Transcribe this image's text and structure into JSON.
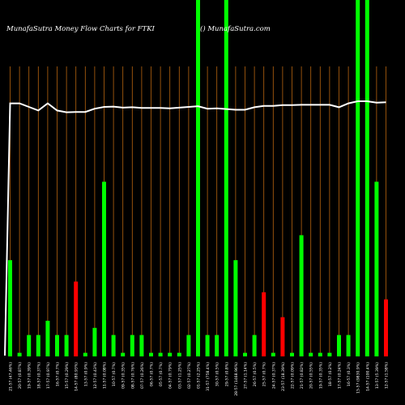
{
  "header": {
    "title": "MunafaSutra  Money Flow  Charts for FTKI",
    "credit": "() MunafaSutra.com"
  },
  "chart_data": {
    "type": "bar",
    "title": "MunafaSutra  Money Flow  Charts for FTKI",
    "background": "#000000",
    "colors": {
      "up": "#00ff00",
      "down": "#ff0000",
      "line": "#ffffff",
      "grid": "#b8650f"
    },
    "ylim": [
      0,
      100
    ],
    "grid": true,
    "categories": [
      "21-57 (47.46%)",
      "20-57 (0.87%)",
      "19-57 (0.39%)",
      "18-57 (0.37%)",
      "17-57 (0.97%)",
      "16-57 (0.7%)",
      "15-57 (0.29%)",
      "14-57 (80.93%)",
      "13-57 (0.9%)",
      "12-57 (0.43%)",
      "11-57 (0.08%)",
      "10-57 (0.7%)",
      "09-57 (0.35%)",
      "08-57 (0.76%)",
      "07-57 (0.26%)",
      "06-57 (0.7%)",
      "05-57 (0.7%)",
      "04-57 (0.79%)",
      "03-57 (1.25%)",
      "02-57 (0.27%)",
      "01-57 (2.25%)",
      "31-57 (758.4%)",
      "30-57 (0.5%)",
      "29-57 (0.8%)",
      "28-57 (1468.96%)",
      "27-57 (1.14%)",
      "26-57 (0.5%)",
      "25-57 (0.7%)",
      "24-57 (0.37%)",
      "23-57 (18.39%)",
      "22-57 (0.09%)",
      "21-57 (0.82%)",
      "20-57 (0.55%)",
      "19-57 (0.35%)",
      "18-57 (0.2%)",
      "17-57 (0.24%)",
      "16-57 (0.3%)",
      "15-57 (9830.9%)",
      "14-57 (100.4%)",
      "13-57 (5.39%)",
      "12-57 (1.58%)"
    ],
    "series": [
      {
        "values": [
          27,
          1,
          6,
          6,
          10,
          6,
          6,
          21,
          1,
          8,
          49,
          6,
          1,
          6,
          6,
          1,
          1,
          1,
          1,
          6,
          100,
          6,
          6,
          100,
          27,
          1,
          6,
          18,
          1,
          11,
          1,
          34,
          1,
          1,
          1,
          6,
          6,
          100,
          100,
          49,
          16
        ],
        "bar_colors": [
          "up",
          "up",
          "up",
          "up",
          "up",
          "up",
          "up",
          "down",
          "up",
          "up",
          "up",
          "up",
          "up",
          "up",
          "up",
          "up",
          "up",
          "up",
          "up",
          "up",
          "up",
          "up",
          "up",
          "up",
          "up",
          "up",
          "up",
          "down",
          "up",
          "down",
          "up",
          "up",
          "up",
          "up",
          "up",
          "up",
          "up",
          "up",
          "up",
          "up",
          "down"
        ]
      },
      {
        "type": "line",
        "values": [
          71,
          71,
          70,
          69,
          71,
          69,
          68.5,
          68.6,
          68.6,
          69.5,
          70,
          70.1,
          69.8,
          69.9,
          69.7,
          69.7,
          69.7,
          69.6,
          69.8,
          70,
          70.2,
          69.5,
          69.6,
          69.4,
          69.2,
          69.2,
          69.9,
          70.3,
          70.3,
          70.5,
          70.5,
          70.6,
          70.6,
          70.6,
          70.6,
          69.9,
          71,
          71.6,
          71.6,
          71.2,
          71.3
        ]
      }
    ]
  }
}
